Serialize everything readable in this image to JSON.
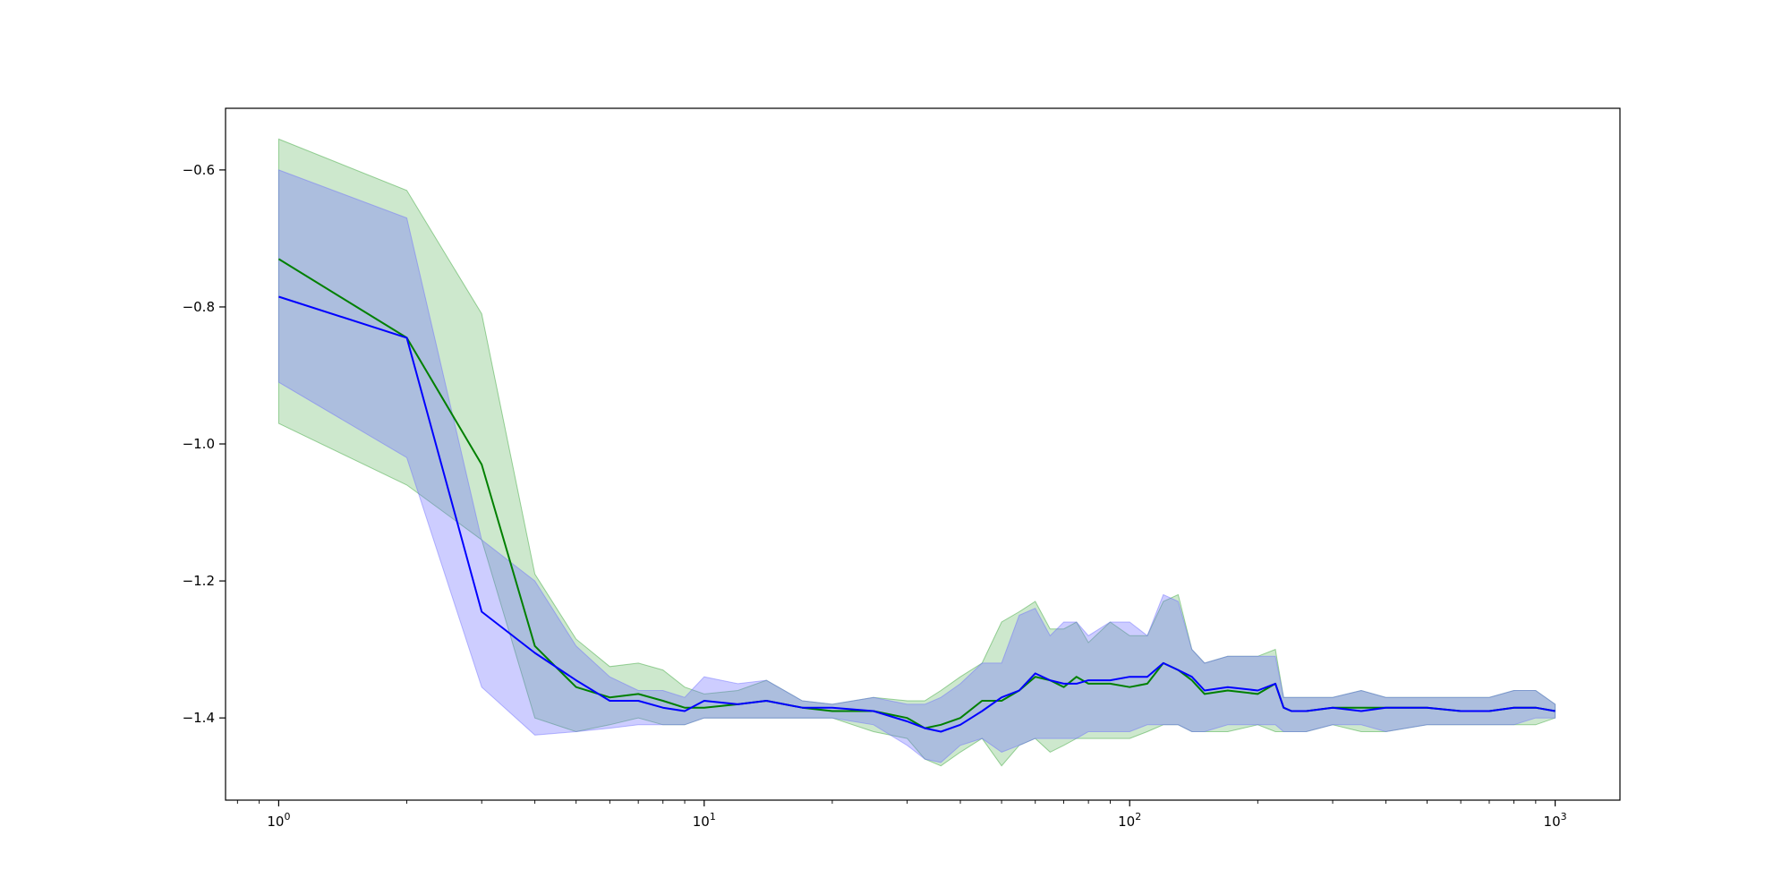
{
  "chart_data": {
    "type": "line",
    "title": "",
    "xlabel": "",
    "ylabel": "",
    "x_scale": "log",
    "xlim": [
      0.75,
      1420
    ],
    "ylim": [
      -1.52,
      -0.51
    ],
    "grid": false,
    "x_ticks": [
      {
        "value": 1,
        "base": "10",
        "exp": "0"
      },
      {
        "value": 10,
        "base": "10",
        "exp": "1"
      },
      {
        "value": 100,
        "base": "10",
        "exp": "2"
      },
      {
        "value": 1000,
        "base": "10",
        "exp": "3"
      }
    ],
    "y_ticks": [
      {
        "value": -0.6,
        "label": "−0.6"
      },
      {
        "value": -0.8,
        "label": "−0.8"
      },
      {
        "value": -1.0,
        "label": "−1.0"
      },
      {
        "value": -1.2,
        "label": "−1.2"
      },
      {
        "value": -1.4,
        "label": "−1.4"
      }
    ],
    "series": [
      {
        "color": "#008000",
        "band_color": "#2ca02c",
        "x": [
          1,
          2,
          3,
          4,
          5,
          6,
          7,
          8,
          9,
          10,
          12,
          14,
          17,
          20,
          25,
          30,
          33,
          36,
          40,
          45,
          50,
          55,
          60,
          65,
          70,
          75,
          80,
          90,
          100,
          110,
          120,
          130,
          140,
          150,
          170,
          200,
          220,
          230,
          240,
          260,
          300,
          350,
          400,
          500,
          600,
          700,
          800,
          900,
          1000
        ],
        "y": [
          -0.73,
          -0.845,
          -1.03,
          -1.295,
          -1.355,
          -1.37,
          -1.365,
          -1.375,
          -1.385,
          -1.385,
          -1.38,
          -1.375,
          -1.385,
          -1.39,
          -1.39,
          -1.4,
          -1.415,
          -1.41,
          -1.4,
          -1.375,
          -1.375,
          -1.36,
          -1.34,
          -1.345,
          -1.355,
          -1.34,
          -1.35,
          -1.35,
          -1.355,
          -1.35,
          -1.32,
          -1.33,
          -1.345,
          -1.365,
          -1.36,
          -1.365,
          -1.35,
          -1.385,
          -1.39,
          -1.39,
          -1.385,
          -1.385,
          -1.385,
          -1.385,
          -1.39,
          -1.39,
          -1.385,
          -1.385,
          -1.39
        ],
        "lower": [
          -0.97,
          -1.06,
          -1.14,
          -1.4,
          -1.42,
          -1.41,
          -1.4,
          -1.41,
          -1.41,
          -1.4,
          -1.4,
          -1.4,
          -1.4,
          -1.4,
          -1.42,
          -1.43,
          -1.46,
          -1.47,
          -1.45,
          -1.43,
          -1.47,
          -1.44,
          -1.43,
          -1.45,
          -1.44,
          -1.43,
          -1.43,
          -1.43,
          -1.43,
          -1.42,
          -1.41,
          -1.41,
          -1.42,
          -1.42,
          -1.42,
          -1.41,
          -1.42,
          -1.42,
          -1.42,
          -1.42,
          -1.41,
          -1.42,
          -1.42,
          -1.41,
          -1.41,
          -1.41,
          -1.41,
          -1.41,
          -1.4
        ],
        "upper": [
          -0.555,
          -0.63,
          -0.81,
          -1.19,
          -1.285,
          -1.325,
          -1.32,
          -1.33,
          -1.355,
          -1.365,
          -1.36,
          -1.345,
          -1.375,
          -1.38,
          -1.37,
          -1.375,
          -1.375,
          -1.36,
          -1.34,
          -1.32,
          -1.26,
          -1.245,
          -1.23,
          -1.27,
          -1.27,
          -1.26,
          -1.29,
          -1.26,
          -1.28,
          -1.28,
          -1.23,
          -1.22,
          -1.3,
          -1.32,
          -1.31,
          -1.31,
          -1.3,
          -1.37,
          -1.37,
          -1.37,
          -1.37,
          -1.36,
          -1.37,
          -1.37,
          -1.37,
          -1.37,
          -1.36,
          -1.36,
          -1.38
        ]
      },
      {
        "color": "#0000ff",
        "band_color": "#6b6bff",
        "x": [
          1,
          2,
          3,
          4,
          5,
          6,
          7,
          8,
          9,
          10,
          12,
          14,
          17,
          20,
          25,
          30,
          33,
          36,
          40,
          45,
          50,
          55,
          60,
          65,
          70,
          75,
          80,
          90,
          100,
          110,
          120,
          130,
          140,
          150,
          170,
          200,
          220,
          230,
          240,
          260,
          300,
          350,
          400,
          500,
          600,
          700,
          800,
          900,
          1000
        ],
        "y": [
          -0.785,
          -0.845,
          -1.245,
          -1.305,
          -1.345,
          -1.375,
          -1.375,
          -1.385,
          -1.39,
          -1.375,
          -1.38,
          -1.375,
          -1.385,
          -1.385,
          -1.39,
          -1.405,
          -1.415,
          -1.42,
          -1.41,
          -1.39,
          -1.37,
          -1.36,
          -1.335,
          -1.345,
          -1.35,
          -1.35,
          -1.345,
          -1.345,
          -1.34,
          -1.34,
          -1.32,
          -1.33,
          -1.34,
          -1.36,
          -1.355,
          -1.36,
          -1.35,
          -1.385,
          -1.39,
          -1.39,
          -1.385,
          -1.39,
          -1.385,
          -1.385,
          -1.39,
          -1.39,
          -1.385,
          -1.385,
          -1.39
        ],
        "lower": [
          -0.91,
          -1.02,
          -1.355,
          -1.425,
          -1.42,
          -1.415,
          -1.41,
          -1.41,
          -1.41,
          -1.4,
          -1.4,
          -1.4,
          -1.4,
          -1.4,
          -1.41,
          -1.44,
          -1.46,
          -1.465,
          -1.44,
          -1.43,
          -1.45,
          -1.44,
          -1.43,
          -1.43,
          -1.43,
          -1.43,
          -1.42,
          -1.42,
          -1.42,
          -1.41,
          -1.41,
          -1.41,
          -1.42,
          -1.42,
          -1.41,
          -1.41,
          -1.41,
          -1.42,
          -1.42,
          -1.42,
          -1.41,
          -1.41,
          -1.42,
          -1.41,
          -1.41,
          -1.41,
          -1.41,
          -1.4,
          -1.4
        ],
        "upper": [
          -0.6,
          -0.67,
          -1.14,
          -1.2,
          -1.295,
          -1.34,
          -1.36,
          -1.36,
          -1.37,
          -1.34,
          -1.35,
          -1.345,
          -1.375,
          -1.38,
          -1.37,
          -1.38,
          -1.38,
          -1.37,
          -1.35,
          -1.32,
          -1.32,
          -1.25,
          -1.24,
          -1.28,
          -1.26,
          -1.26,
          -1.28,
          -1.26,
          -1.26,
          -1.28,
          -1.22,
          -1.23,
          -1.3,
          -1.32,
          -1.31,
          -1.31,
          -1.31,
          -1.37,
          -1.37,
          -1.37,
          -1.37,
          -1.36,
          -1.37,
          -1.37,
          -1.37,
          -1.37,
          -1.36,
          -1.36,
          -1.38
        ]
      }
    ]
  }
}
